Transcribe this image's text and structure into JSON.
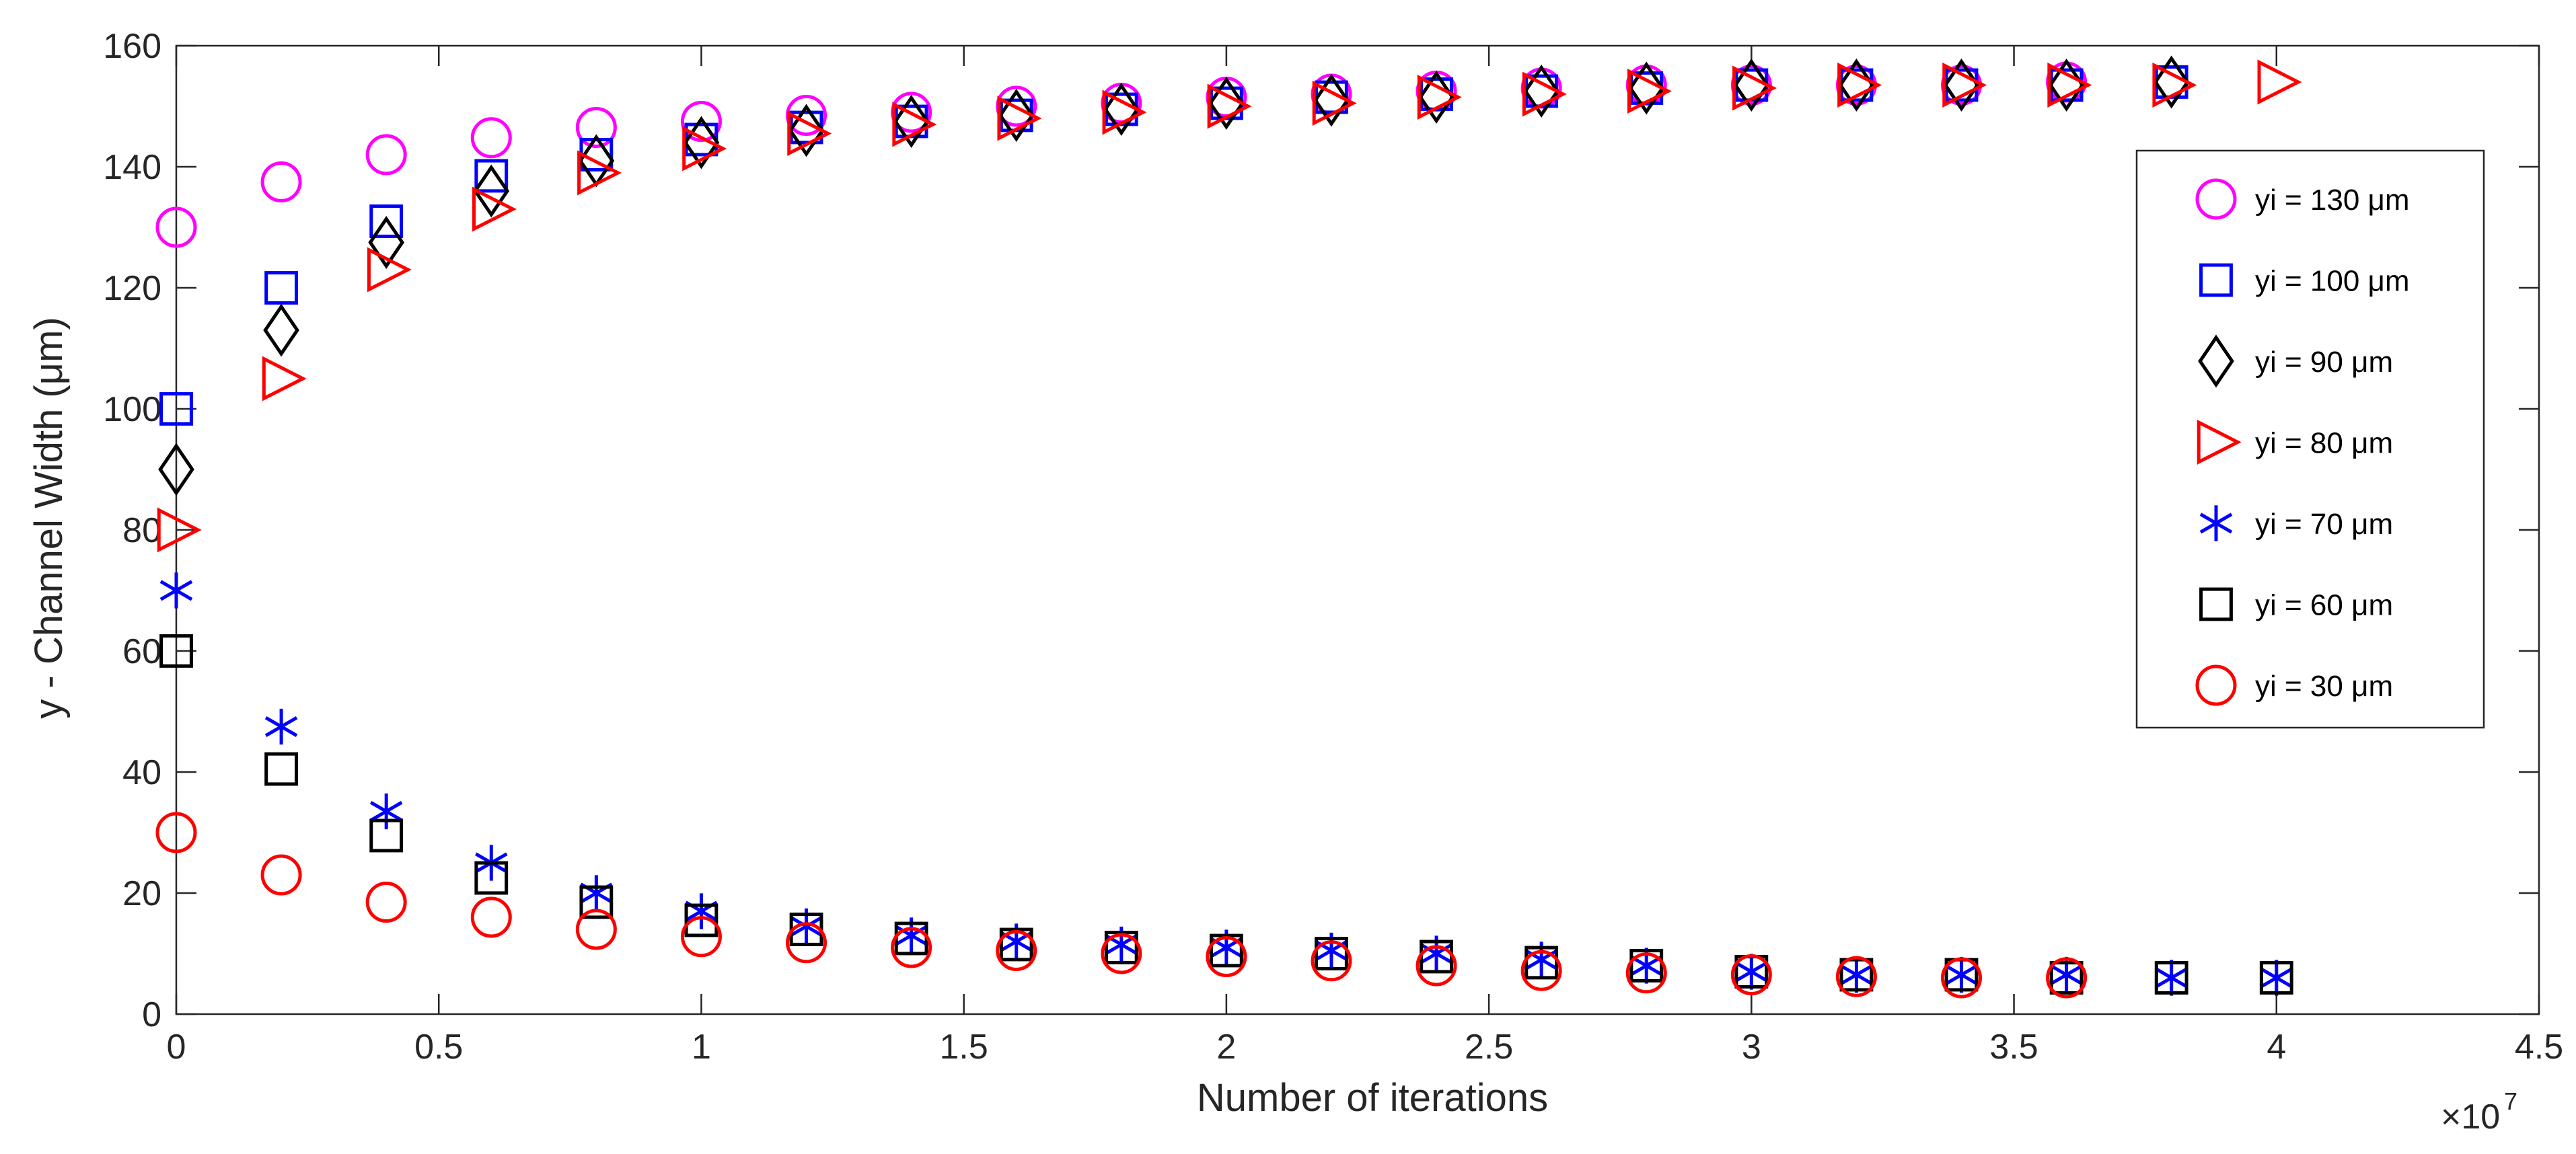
{
  "chart_data": {
    "type": "scatter",
    "xlabel": "Number of iterations",
    "ylabel": "y - Channel Width (μm)",
    "x_exponent_label": "×10",
    "x_exponent_power": "7",
    "xlim": [
      0,
      4.5
    ],
    "ylim": [
      0,
      160
    ],
    "x_ticks": [
      "0",
      "0.5",
      "1",
      "1.5",
      "2",
      "2.5",
      "3",
      "3.5",
      "4",
      "4.5"
    ],
    "y_ticks": [
      "0",
      "20",
      "40",
      "60",
      "80",
      "100",
      "120",
      "140",
      "160"
    ],
    "legend_position": "top-right",
    "grid": false,
    "x": [
      0,
      0.2,
      0.4,
      0.6,
      0.8,
      1.0,
      1.2,
      1.4,
      1.6,
      1.8,
      2.0,
      2.2,
      2.4,
      2.6,
      2.8,
      3.0,
      3.2,
      3.4,
      3.6,
      3.8,
      4.0
    ],
    "series": [
      {
        "name": "yi = 130 μm",
        "marker": "circle",
        "color": "#ff00ff",
        "x": [
          0,
          0.2,
          0.4,
          0.6,
          0.8,
          1.0,
          1.2,
          1.4,
          1.6,
          1.8,
          2.0,
          2.2,
          2.4,
          2.6,
          2.8,
          3.0,
          3.2,
          3.4,
          3.6
        ],
        "values": [
          130,
          137.5,
          142,
          144.8,
          146.5,
          147.5,
          148.5,
          149,
          150,
          150.5,
          151.5,
          152,
          152.5,
          153,
          153.5,
          153.5,
          153.5,
          153.5,
          154
        ]
      },
      {
        "name": "yi = 100 μm",
        "marker": "square",
        "color": "#0000ff",
        "x": [
          0,
          0.2,
          0.4,
          0.6,
          0.8,
          1.0,
          1.2,
          1.4,
          1.6,
          1.8,
          2.0,
          2.2,
          2.4,
          2.6,
          2.8,
          3.0,
          3.2,
          3.4,
          3.6,
          3.8
        ],
        "values": [
          100,
          120,
          131,
          138.5,
          142,
          144.5,
          146.5,
          147.5,
          148.5,
          149.5,
          150.5,
          151.5,
          152,
          152.5,
          153,
          153.5,
          153.5,
          153.5,
          153.5,
          154
        ]
      },
      {
        "name": "yi = 90 μm",
        "marker": "diamond",
        "color": "#000000",
        "x": [
          0,
          0.2,
          0.4,
          0.6,
          0.8,
          1.0,
          1.2,
          1.4,
          1.6,
          1.8,
          2.0,
          2.2,
          2.4,
          2.6,
          2.8,
          3.0,
          3.2,
          3.4,
          3.6,
          3.8
        ],
        "values": [
          90,
          113,
          127.5,
          136,
          141,
          144,
          146,
          147.5,
          148.5,
          149.5,
          150.5,
          151,
          151.5,
          152.5,
          153,
          153.5,
          153.5,
          153.5,
          153.5,
          154
        ]
      },
      {
        "name": "yi = 80 μm",
        "marker": "triangle-right",
        "color": "#ff0000",
        "x": [
          0,
          0.2,
          0.4,
          0.6,
          0.8,
          1.0,
          1.2,
          1.4,
          1.6,
          1.8,
          2.0,
          2.2,
          2.4,
          2.6,
          2.8,
          3.0,
          3.2,
          3.4,
          3.6,
          3.8,
          4.0
        ],
        "values": [
          80,
          105,
          123,
          133,
          139,
          143,
          145.5,
          147,
          148,
          149,
          150,
          150.5,
          151.5,
          152,
          152.5,
          153,
          153.5,
          153.5,
          153.5,
          153.5,
          154
        ]
      },
      {
        "name": "yi = 70 μm",
        "marker": "asterisk",
        "color": "#0000ff",
        "x": [
          0,
          0.2,
          0.4,
          0.6,
          0.8,
          1.0,
          1.2,
          1.4,
          1.6,
          1.8,
          2.0,
          2.2,
          2.4,
          2.6,
          2.8,
          3.0,
          3.2,
          3.4,
          3.6,
          3.8,
          4.0
        ],
        "values": [
          70,
          47.5,
          33.5,
          25,
          20,
          17,
          14.5,
          13,
          12,
          11.5,
          11,
          10.5,
          10,
          9,
          8,
          7,
          6.5,
          6.5,
          6.5,
          6,
          6
        ]
      },
      {
        "name": "yi = 60 μm",
        "marker": "square",
        "color": "#000000",
        "x": [
          0,
          0.2,
          0.4,
          0.6,
          0.8,
          1.0,
          1.2,
          1.4,
          1.6,
          1.8,
          2.0,
          2.2,
          2.4,
          2.6,
          2.8,
          3.0,
          3.2,
          3.4,
          3.6,
          3.8,
          4.0
        ],
        "values": [
          60,
          40.5,
          29.5,
          22.5,
          18.5,
          15.5,
          14,
          12.5,
          11.5,
          11,
          10.5,
          10,
          9.5,
          8.5,
          8,
          7,
          6.5,
          6.5,
          6,
          6,
          6
        ]
      },
      {
        "name": "yi = 30 μm",
        "marker": "circle",
        "color": "#ff0000",
        "x": [
          0,
          0.2,
          0.4,
          0.6,
          0.8,
          1.0,
          1.2,
          1.4,
          1.6,
          1.8,
          2.0,
          2.2,
          2.4,
          2.6,
          2.8,
          3.0,
          3.2,
          3.4,
          3.6
        ],
        "values": [
          30,
          23,
          18.5,
          16,
          14,
          12.8,
          11.8,
          11,
          10.5,
          10,
          9.5,
          8.8,
          8,
          7.2,
          6.8,
          6.5,
          6.2,
          6,
          6
        ]
      }
    ]
  }
}
